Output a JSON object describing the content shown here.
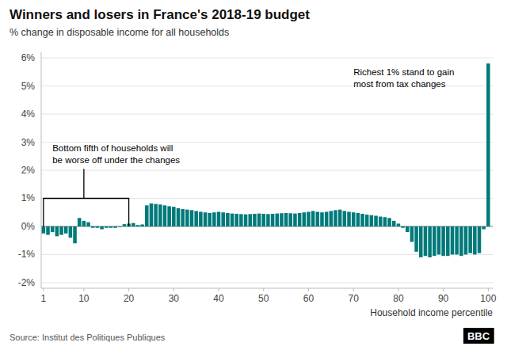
{
  "chart_data": {
    "type": "bar",
    "title": "Winners and losers in France's 2018-19 budget",
    "subtitle": "% change in disposable income for all households",
    "xlabel": "Household income percentile",
    "source": "Source: Institut des Politiques Publiques",
    "credit": "BBC",
    "color": "#007A7A",
    "grid": true,
    "x": [
      1,
      2,
      3,
      4,
      5,
      6,
      7,
      8,
      9,
      10,
      11,
      12,
      13,
      14,
      15,
      16,
      17,
      18,
      19,
      20,
      21,
      22,
      23,
      24,
      25,
      26,
      27,
      28,
      29,
      30,
      31,
      32,
      33,
      34,
      35,
      36,
      37,
      38,
      39,
      40,
      41,
      42,
      43,
      44,
      45,
      46,
      47,
      48,
      49,
      50,
      51,
      52,
      53,
      54,
      55,
      56,
      57,
      58,
      59,
      60,
      61,
      62,
      63,
      64,
      65,
      66,
      67,
      68,
      69,
      70,
      71,
      72,
      73,
      74,
      75,
      76,
      77,
      78,
      79,
      80,
      81,
      82,
      83,
      84,
      85,
      86,
      87,
      88,
      89,
      90,
      91,
      92,
      93,
      94,
      95,
      96,
      97,
      98,
      99,
      100
    ],
    "values": [
      -0.25,
      -0.3,
      -0.2,
      -0.35,
      -0.3,
      -0.25,
      -0.4,
      -0.6,
      0.3,
      0.2,
      0.15,
      -0.05,
      -0.05,
      -0.1,
      -0.05,
      -0.05,
      -0.05,
      -0.02,
      0.08,
      0.1,
      0.12,
      0.05,
      0.07,
      0.75,
      0.82,
      0.8,
      0.78,
      0.75,
      0.72,
      0.7,
      0.65,
      0.62,
      0.6,
      0.58,
      0.55,
      0.52,
      0.5,
      0.48,
      0.5,
      0.52,
      0.5,
      0.48,
      0.46,
      0.45,
      0.44,
      0.43,
      0.44,
      0.45,
      0.46,
      0.45,
      0.44,
      0.45,
      0.46,
      0.47,
      0.48,
      0.47,
      0.46,
      0.48,
      0.5,
      0.52,
      0.55,
      0.52,
      0.5,
      0.52,
      0.55,
      0.58,
      0.6,
      0.55,
      0.52,
      0.5,
      0.48,
      0.45,
      0.42,
      0.4,
      0.38,
      0.35,
      0.33,
      0.3,
      0.2,
      0.1,
      -0.05,
      -0.2,
      -0.55,
      -0.9,
      -1.1,
      -1.05,
      -1.1,
      -1.05,
      -1.0,
      -1.05,
      -1.05,
      -1.0,
      -1.0,
      -1.05,
      -1.0,
      -0.95,
      -1.0,
      -0.95,
      -0.1,
      5.8
    ],
    "xlim": [
      0.5,
      101
    ],
    "ylim": [
      -2.2,
      6.2
    ],
    "xticks": [
      1,
      10,
      20,
      30,
      40,
      50,
      60,
      70,
      80,
      90,
      100
    ],
    "yticks": [
      {
        "value": -2,
        "label": "-2%"
      },
      {
        "value": -1,
        "label": "-1%"
      },
      {
        "value": 0,
        "label": "0%"
      },
      {
        "value": 1,
        "label": "1%"
      },
      {
        "value": 2,
        "label": "2%"
      },
      {
        "value": 3,
        "label": "3%"
      },
      {
        "value": 4,
        "label": "4%"
      },
      {
        "value": 5,
        "label": "5%"
      },
      {
        "value": 6,
        "label": "6%"
      }
    ],
    "annotations": [
      {
        "text": "Bottom fifth of households will\nbe worse off under the changes",
        "x": 3,
        "y": 2.15,
        "bracket": {
          "x": [
            1,
            20
          ],
          "y": 1,
          "stem_x": 10,
          "stem_top": 2.05
        }
      },
      {
        "text": "Richest 1% stand to gain\nmost from tax changes",
        "x": 70,
        "y": 5.7
      }
    ]
  }
}
